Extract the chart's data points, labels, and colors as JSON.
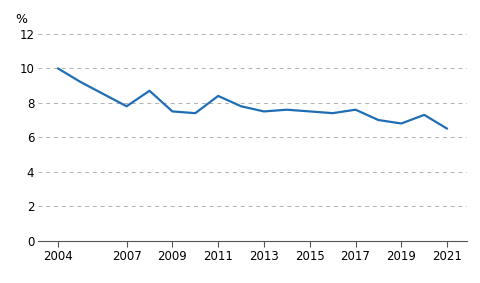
{
  "years": [
    2004,
    2005,
    2006,
    2007,
    2008,
    2009,
    2010,
    2011,
    2012,
    2013,
    2014,
    2015,
    2016,
    2017,
    2018,
    2019,
    2020,
    2021
  ],
  "values": [
    10.0,
    9.2,
    8.5,
    7.8,
    8.7,
    7.5,
    7.4,
    8.4,
    7.8,
    7.5,
    7.6,
    7.5,
    7.4,
    7.6,
    7.0,
    6.8,
    7.3,
    6.5
  ],
  "line_color": "#1f6eb5",
  "line_width": 1.6,
  "ylim": [
    0,
    12
  ],
  "yticks": [
    0,
    2,
    4,
    6,
    8,
    10,
    12
  ],
  "xticks": [
    2004,
    2007,
    2009,
    2011,
    2013,
    2015,
    2017,
    2019,
    2021
  ],
  "ylabel": "%",
  "grid_color": "#b0b0b0",
  "background_color": "#ffffff",
  "tick_fontsize": 8.5
}
